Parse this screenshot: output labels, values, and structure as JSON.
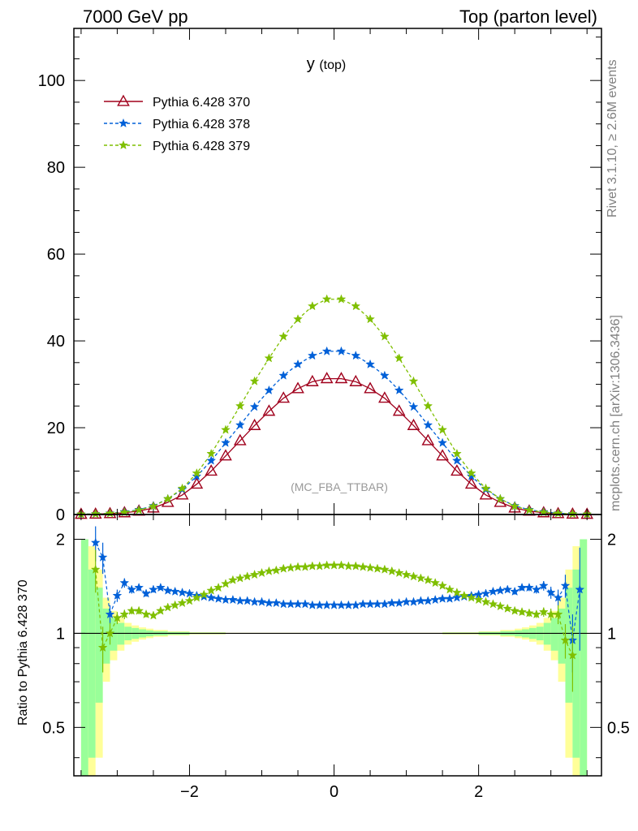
{
  "header": {
    "left": "7000 GeV pp",
    "right": "Top (parton level)"
  },
  "side_labels": {
    "rivet": "Rivet 3.1.10, ≥ 2.6M events",
    "mcplots": "mcplots.cern.ch [arXiv:1306.3436]"
  },
  "chart_data": [
    {
      "type": "line",
      "title": "y",
      "title_sub": "(top)",
      "watermark": "(MC_FBA_TTBAR)",
      "xlim": [
        -3.6,
        3.7
      ],
      "ylim": [
        0,
        112
      ],
      "yticks": [
        0,
        20,
        40,
        60,
        80,
        100
      ],
      "xticks": [
        -2,
        0,
        2
      ],
      "legend_position": "top-left",
      "series": [
        {
          "name": "Pythia 6.428 370",
          "color": "#a0001c",
          "marker": "triangle",
          "dash": "solid",
          "x": [
            -3.5,
            -3.3,
            -3.1,
            -2.9,
            -2.7,
            -2.5,
            -2.3,
            -2.1,
            -1.9,
            -1.7,
            -1.5,
            -1.3,
            -1.1,
            -0.9,
            -0.7,
            -0.5,
            -0.3,
            -0.1,
            0.1,
            0.3,
            0.5,
            0.7,
            0.9,
            1.1,
            1.3,
            1.5,
            1.7,
            1.9,
            2.1,
            2.3,
            2.5,
            2.7,
            2.9,
            3.1,
            3.3,
            3.5
          ],
          "y": [
            0.05,
            0.1,
            0.2,
            0.4,
            0.8,
            1.5,
            2.8,
            4.5,
            7.0,
            10.0,
            13.5,
            17.0,
            20.5,
            23.8,
            26.8,
            29.0,
            30.6,
            31.3,
            31.3,
            30.6,
            29.0,
            26.8,
            23.8,
            20.5,
            17.0,
            13.5,
            10.0,
            7.0,
            4.5,
            2.8,
            1.5,
            0.8,
            0.4,
            0.2,
            0.1,
            0.05
          ]
        },
        {
          "name": "Pythia 6.428 378",
          "color": "#0060d8",
          "marker": "star",
          "dash": "dashed",
          "x": [
            -3.5,
            -3.3,
            -3.1,
            -2.9,
            -2.7,
            -2.5,
            -2.3,
            -2.1,
            -1.9,
            -1.7,
            -1.5,
            -1.3,
            -1.1,
            -0.9,
            -0.7,
            -0.5,
            -0.3,
            -0.1,
            0.1,
            0.3,
            0.5,
            0.7,
            0.9,
            1.1,
            1.3,
            1.5,
            1.7,
            1.9,
            2.1,
            2.3,
            2.5,
            2.7,
            2.9,
            3.1,
            3.3,
            3.5
          ],
          "y": [
            0.07,
            0.15,
            0.3,
            0.6,
            1.1,
            2.0,
            3.6,
            5.8,
            8.8,
            12.4,
            16.5,
            20.6,
            24.8,
            28.6,
            32.0,
            34.6,
            36.6,
            37.6,
            37.6,
            36.6,
            34.6,
            32.0,
            28.6,
            24.8,
            20.6,
            16.5,
            12.4,
            8.8,
            5.8,
            3.6,
            2.0,
            1.1,
            0.6,
            0.3,
            0.15,
            0.07
          ]
        },
        {
          "name": "Pythia 6.428 379",
          "color": "#7fbf00",
          "marker": "star",
          "dash": "dashed",
          "x": [
            -3.5,
            -3.3,
            -3.1,
            -2.9,
            -2.7,
            -2.5,
            -2.3,
            -2.1,
            -1.9,
            -1.7,
            -1.5,
            -1.3,
            -1.1,
            -0.9,
            -0.7,
            -0.5,
            -0.3,
            -0.1,
            0.1,
            0.3,
            0.5,
            0.7,
            0.9,
            1.1,
            1.3,
            1.5,
            1.7,
            1.9,
            2.1,
            2.3,
            2.5,
            2.7,
            2.9,
            3.1,
            3.3,
            3.5
          ],
          "y": [
            0.06,
            0.13,
            0.25,
            0.5,
            1.0,
            1.9,
            3.6,
            6.0,
            9.5,
            14.0,
            19.5,
            25.0,
            30.7,
            36.0,
            41.0,
            45.0,
            48.0,
            49.6,
            49.6,
            48.0,
            45.0,
            41.0,
            36.0,
            30.7,
            25.0,
            19.5,
            14.0,
            9.5,
            6.0,
            3.6,
            1.9,
            1.0,
            0.5,
            0.25,
            0.13,
            0.06
          ]
        }
      ]
    },
    {
      "type": "line",
      "ylabel": "Ratio to Pythia 6.428 370",
      "scale": "log",
      "ylim": [
        0.35,
        2.4
      ],
      "yticks": [
        0.5,
        1,
        2
      ],
      "xlim": [
        -3.6,
        3.7
      ],
      "xticks": [
        -2,
        0,
        2
      ],
      "reference": 1,
      "bands": {
        "x_edges": [
          -3.5,
          -3.4,
          -3.3,
          -3.2,
          -3.1,
          -3.0,
          -2.9,
          -2.8,
          -2.7,
          -2.6,
          -2.5,
          -2.3,
          -2.0,
          -1.5,
          1.5,
          2.0,
          2.3,
          2.5,
          2.6,
          2.7,
          2.8,
          2.9,
          3.0,
          3.1,
          3.2,
          3.3,
          3.4,
          3.5
        ],
        "yellow_half": [
          1.0,
          0.9,
          0.6,
          0.3,
          0.18,
          0.12,
          0.08,
          0.06,
          0.045,
          0.035,
          0.025,
          0.015,
          0.008,
          0.004,
          0.008,
          0.015,
          0.025,
          0.035,
          0.045,
          0.06,
          0.08,
          0.12,
          0.18,
          0.3,
          0.6,
          0.9,
          1.0
        ],
        "green_half": [
          1.0,
          0.6,
          0.4,
          0.2,
          0.12,
          0.08,
          0.05,
          0.04,
          0.03,
          0.022,
          0.016,
          0.01,
          0.005,
          0.002,
          0.005,
          0.01,
          0.016,
          0.022,
          0.03,
          0.04,
          0.05,
          0.08,
          0.12,
          0.2,
          0.4,
          0.6,
          1.0
        ],
        "yellow_color": "#ffff99",
        "green_color": "#99ff99"
      },
      "series": [
        {
          "name": "Pythia 6.428 378",
          "color": "#0060d8",
          "marker": "star",
          "dash": "dashed",
          "x": [
            -3.3,
            -3.2,
            -3.1,
            -3.0,
            -2.9,
            -2.8,
            -2.7,
            -2.6,
            -2.5,
            -2.4,
            -2.3,
            -2.2,
            -2.1,
            -2.0,
            -1.9,
            -1.8,
            -1.7,
            -1.6,
            -1.5,
            -1.4,
            -1.3,
            -1.2,
            -1.1,
            -1.0,
            -0.9,
            -0.8,
            -0.7,
            -0.6,
            -0.5,
            -0.4,
            -0.3,
            -0.2,
            -0.1,
            0.0,
            0.1,
            0.2,
            0.3,
            0.4,
            0.5,
            0.6,
            0.7,
            0.8,
            0.9,
            1.0,
            1.1,
            1.2,
            1.3,
            1.4,
            1.5,
            1.6,
            1.7,
            1.8,
            1.9,
            2.0,
            2.1,
            2.2,
            2.3,
            2.4,
            2.5,
            2.6,
            2.7,
            2.8,
            2.9,
            3.0,
            3.1,
            3.2,
            3.3,
            3.4
          ],
          "y": [
            1.95,
            1.75,
            1.15,
            1.32,
            1.45,
            1.38,
            1.4,
            1.34,
            1.38,
            1.4,
            1.37,
            1.36,
            1.35,
            1.34,
            1.32,
            1.31,
            1.3,
            1.29,
            1.28,
            1.28,
            1.27,
            1.27,
            1.26,
            1.26,
            1.25,
            1.25,
            1.24,
            1.24,
            1.24,
            1.24,
            1.23,
            1.23,
            1.23,
            1.23,
            1.23,
            1.23,
            1.23,
            1.24,
            1.24,
            1.24,
            1.24,
            1.25,
            1.25,
            1.26,
            1.26,
            1.27,
            1.27,
            1.28,
            1.29,
            1.29,
            1.3,
            1.31,
            1.32,
            1.33,
            1.34,
            1.36,
            1.37,
            1.38,
            1.36,
            1.4,
            1.4,
            1.38,
            1.42,
            1.35,
            1.3,
            1.42,
            0.95,
            1.38
          ],
          "err": [
            0.25,
            0.2,
            0.08,
            0.06,
            0.05,
            0.04,
            0.035,
            0.03,
            0.03,
            0.025,
            0.02,
            0.02,
            0.015,
            0.015,
            0.012,
            0.01,
            0.01,
            0.01,
            0.01,
            0.01,
            0.01,
            0.01,
            0.01,
            0.01,
            0.01,
            0.01,
            0.01,
            0.01,
            0.01,
            0.01,
            0.01,
            0.01,
            0.01,
            0.01,
            0.01,
            0.01,
            0.01,
            0.01,
            0.01,
            0.01,
            0.01,
            0.01,
            0.01,
            0.01,
            0.01,
            0.01,
            0.01,
            0.01,
            0.01,
            0.01,
            0.01,
            0.01,
            0.012,
            0.015,
            0.015,
            0.02,
            0.02,
            0.025,
            0.03,
            0.03,
            0.035,
            0.04,
            0.05,
            0.06,
            0.08,
            0.12,
            0.2,
            0.5
          ]
        },
        {
          "name": "Pythia 6.428 379",
          "color": "#7fbf00",
          "marker": "star",
          "dash": "dashed",
          "x": [
            -3.3,
            -3.2,
            -3.1,
            -3.0,
            -2.9,
            -2.8,
            -2.7,
            -2.6,
            -2.5,
            -2.4,
            -2.3,
            -2.2,
            -2.1,
            -2.0,
            -1.9,
            -1.8,
            -1.7,
            -1.6,
            -1.5,
            -1.4,
            -1.3,
            -1.2,
            -1.1,
            -1.0,
            -0.9,
            -0.8,
            -0.7,
            -0.6,
            -0.5,
            -0.4,
            -0.3,
            -0.2,
            -0.1,
            0.0,
            0.1,
            0.2,
            0.3,
            0.4,
            0.5,
            0.6,
            0.7,
            0.8,
            0.9,
            1.0,
            1.1,
            1.2,
            1.3,
            1.4,
            1.5,
            1.6,
            1.7,
            1.8,
            1.9,
            2.0,
            2.1,
            2.2,
            2.3,
            2.4,
            2.5,
            2.6,
            2.7,
            2.8,
            2.9,
            3.0,
            3.1,
            3.2,
            3.3
          ],
          "y": [
            1.6,
            0.9,
            1.0,
            1.12,
            1.15,
            1.18,
            1.18,
            1.15,
            1.14,
            1.18,
            1.21,
            1.23,
            1.25,
            1.27,
            1.3,
            1.33,
            1.37,
            1.4,
            1.44,
            1.48,
            1.5,
            1.52,
            1.54,
            1.56,
            1.58,
            1.59,
            1.61,
            1.62,
            1.63,
            1.63,
            1.64,
            1.64,
            1.65,
            1.65,
            1.65,
            1.64,
            1.64,
            1.63,
            1.62,
            1.61,
            1.6,
            1.58,
            1.56,
            1.54,
            1.52,
            1.5,
            1.48,
            1.45,
            1.42,
            1.38,
            1.35,
            1.32,
            1.3,
            1.28,
            1.26,
            1.24,
            1.22,
            1.2,
            1.18,
            1.17,
            1.16,
            1.15,
            1.17,
            1.15,
            1.15,
            0.95,
            0.85
          ],
          "err": [
            0.25,
            0.15,
            0.08,
            0.05,
            0.04,
            0.03,
            0.03,
            0.025,
            0.02,
            0.02,
            0.015,
            0.015,
            0.012,
            0.01,
            0.01,
            0.01,
            0.01,
            0.01,
            0.01,
            0.01,
            0.01,
            0.01,
            0.01,
            0.01,
            0.01,
            0.01,
            0.01,
            0.01,
            0.01,
            0.01,
            0.01,
            0.01,
            0.01,
            0.01,
            0.01,
            0.01,
            0.01,
            0.01,
            0.01,
            0.01,
            0.01,
            0.01,
            0.01,
            0.01,
            0.01,
            0.01,
            0.01,
            0.01,
            0.01,
            0.01,
            0.01,
            0.01,
            0.01,
            0.01,
            0.012,
            0.015,
            0.015,
            0.02,
            0.02,
            0.025,
            0.03,
            0.03,
            0.04,
            0.05,
            0.08,
            0.12,
            0.2
          ]
        }
      ]
    }
  ]
}
